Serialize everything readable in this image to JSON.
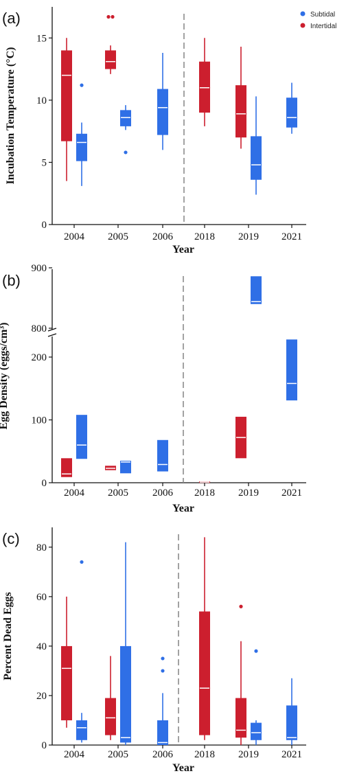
{
  "colors": {
    "subtidal": "#2f6fe6",
    "intertidal": "#cc1f2e",
    "median": "#ffffff",
    "axis": "#111111",
    "divider": "#8a8a8a"
  },
  "legend": {
    "items": [
      "Subtidal",
      "Intertidal"
    ],
    "placement": "top-right"
  },
  "chart_data": [
    {
      "panel_label": "(a)",
      "type": "box",
      "title": "",
      "xlabel": "Year",
      "ylabel": "Incubation Temperature (°C)",
      "categories": [
        "2004",
        "2005",
        "2006",
        "2018",
        "2019",
        "2021"
      ],
      "ylim": [
        0,
        17.5
      ],
      "yticks": [
        0,
        5,
        10,
        15
      ],
      "ytick_labels": [
        "0",
        "5",
        "10",
        "15"
      ],
      "divider_after": "2006",
      "grid": false,
      "series": [
        {
          "name": "Intertidal",
          "boxes": [
            {
              "category": "2004",
              "min": 3.5,
              "q1": 6.7,
              "median": 12.0,
              "q3": 14.0,
              "max": 15.0,
              "outliers": []
            },
            {
              "category": "2005",
              "min": 12.1,
              "q1": 12.5,
              "median": 13.1,
              "q3": 14.0,
              "max": 14.4,
              "outliers": [
                16.7,
                16.7
              ]
            },
            {
              "category": "2018",
              "min": 7.9,
              "q1": 9.0,
              "median": 11.0,
              "q3": 13.1,
              "max": 15.0,
              "outliers": []
            },
            {
              "category": "2019",
              "min": 6.1,
              "q1": 7.0,
              "median": 8.9,
              "q3": 11.2,
              "max": 14.3,
              "outliers": []
            }
          ]
        },
        {
          "name": "Subtidal",
          "boxes": [
            {
              "category": "2004",
              "min": 3.1,
              "q1": 5.1,
              "median": 6.6,
              "q3": 7.3,
              "max": 8.2,
              "outliers": [
                11.2
              ]
            },
            {
              "category": "2005",
              "min": 7.6,
              "q1": 7.9,
              "median": 8.6,
              "q3": 9.2,
              "max": 9.6,
              "outliers": [
                5.8
              ]
            },
            {
              "category": "2006",
              "min": 6.0,
              "q1": 7.2,
              "median": 9.4,
              "q3": 10.9,
              "max": 13.8,
              "outliers": []
            },
            {
              "category": "2019",
              "min": 2.4,
              "q1": 3.6,
              "median": 4.8,
              "q3": 7.1,
              "max": 10.3,
              "outliers": []
            },
            {
              "category": "2021",
              "min": 7.3,
              "q1": 7.8,
              "median": 8.6,
              "q3": 10.2,
              "max": 11.4,
              "outliers": []
            }
          ]
        }
      ]
    },
    {
      "panel_label": "(b)",
      "type": "box",
      "title": "",
      "xlabel": "Year",
      "ylabel": "Egg Density (eggs/cm³)",
      "categories": [
        "2004",
        "2005",
        "2006",
        "2018",
        "2019",
        "2021"
      ],
      "ylim": [
        0,
        900
      ],
      "y_axis_break": [
        240,
        770
      ],
      "yticks": [
        0,
        100,
        200,
        800,
        900
      ],
      "ytick_labels": [
        "0",
        "100",
        "200",
        "800",
        "900"
      ],
      "divider_after": "2006",
      "grid": false,
      "series": [
        {
          "name": "Intertidal",
          "boxes": [
            {
              "category": "2004",
              "q1": 9,
              "median": 14,
              "q3": 39
            },
            {
              "category": "2005",
              "q1": 20,
              "median": 23,
              "q3": 27
            },
            {
              "category": "2018",
              "q1": 1,
              "median": 1,
              "q3": 2
            },
            {
              "category": "2019",
              "q1": 39,
              "median": 72,
              "q3": 105
            }
          ]
        },
        {
          "name": "Subtidal",
          "boxes": [
            {
              "category": "2004",
              "q1": 38,
              "median": 60,
              "q3": 108
            },
            {
              "category": "2005",
              "q1": 15,
              "median": 33,
              "q3": 35
            },
            {
              "category": "2006",
              "q1": 18,
              "median": 29,
              "q3": 68
            },
            {
              "category": "2019",
              "q1": 840,
              "median": 844,
              "q3": 886
            },
            {
              "category": "2021",
              "q1": 131,
              "median": 158,
              "q3": 228
            }
          ]
        }
      ]
    },
    {
      "panel_label": "(c)",
      "type": "box",
      "title": "",
      "xlabel": "Year",
      "ylabel": "Percent Dead Eggs",
      "categories": [
        "2004",
        "2005",
        "2006",
        "2018",
        "2019",
        "2021"
      ],
      "ylim": [
        0,
        88
      ],
      "yticks": [
        0,
        20,
        40,
        60,
        80
      ],
      "ytick_labels": [
        "0",
        "20",
        "40",
        "60",
        "80"
      ],
      "divider_after": "2006",
      "grid": false,
      "series": [
        {
          "name": "Intertidal",
          "boxes": [
            {
              "category": "2004",
              "min": 7,
              "q1": 10,
              "median": 31,
              "q3": 40,
              "max": 60,
              "outliers": []
            },
            {
              "category": "2005",
              "min": 2,
              "q1": 4,
              "median": 11,
              "q3": 19,
              "max": 36,
              "outliers": []
            },
            {
              "category": "2018",
              "min": 2,
              "q1": 4,
              "median": 23,
              "q3": 54,
              "max": 84,
              "outliers": []
            },
            {
              "category": "2019",
              "min": 0,
              "q1": 3,
              "median": 6,
              "q3": 19,
              "max": 42,
              "outliers": [
                56
              ]
            }
          ]
        },
        {
          "name": "Subtidal",
          "boxes": [
            {
              "category": "2004",
              "min": 1,
              "q1": 2,
              "median": 7,
              "q3": 10,
              "max": 13,
              "outliers": [
                74
              ]
            },
            {
              "category": "2005",
              "min": 0,
              "q1": 1,
              "median": 3,
              "q3": 40,
              "max": 82,
              "outliers": []
            },
            {
              "category": "2006",
              "min": 0,
              "q1": 0,
              "median": 1,
              "q3": 10,
              "max": 21,
              "outliers": [
                30,
                35
              ]
            },
            {
              "category": "2019",
              "min": 0,
              "q1": 2,
              "median": 5,
              "q3": 9,
              "max": 10,
              "outliers": [
                38
              ]
            },
            {
              "category": "2021",
              "min": 0,
              "q1": 2,
              "median": 3,
              "q3": 16,
              "max": 27,
              "outliers": []
            }
          ]
        }
      ]
    }
  ]
}
